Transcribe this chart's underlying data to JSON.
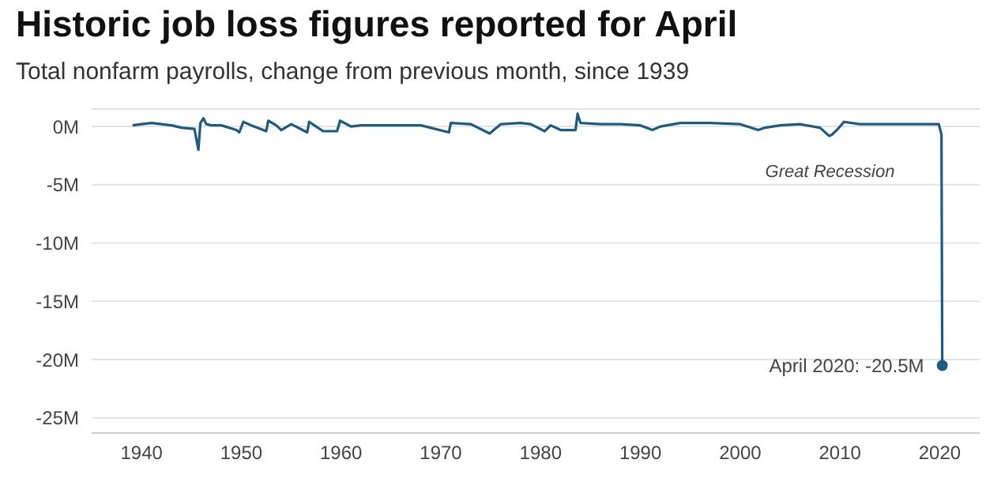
{
  "chart_data": {
    "type": "line",
    "title": "Historic job loss figures reported for April",
    "subtitle": "Total nonfarm payrolls, change from previous month, since 1939",
    "x": [
      1939.1,
      1940,
      1941,
      1942,
      1943,
      1944,
      1945.3,
      1945.7,
      1945.9,
      1946.2,
      1946.5,
      1947,
      1948,
      1949.5,
      1949.8,
      1950.2,
      1951,
      1952.5,
      1952.7,
      1953.5,
      1954,
      1955,
      1956.6,
      1956.8,
      1957.5,
      1958.2,
      1959.6,
      1959.9,
      1961,
      1962,
      1965,
      1968,
      1970.8,
      1971,
      1973,
      1974.9,
      1975.3,
      1976,
      1978,
      1979,
      1980.4,
      1981,
      1982,
      1983.5,
      1983.7,
      1984,
      1986,
      1988,
      1990,
      1991.2,
      1992,
      1994,
      1997,
      2000,
      2001.8,
      2002.5,
      2004,
      2006,
      2008,
      2008.9,
      2009.2,
      2009.8,
      2010.4,
      2012,
      2015,
      2018,
      2019.9,
      2020.17,
      2020.25
    ],
    "series": [
      {
        "color": "#1f5a80",
        "values": [
          0.1,
          0.2,
          0.3,
          0.2,
          0.1,
          -0.1,
          -0.2,
          -2,
          0.3,
          0.7,
          0.2,
          0.1,
          0.1,
          -0.3,
          -0.5,
          0.4,
          0.1,
          -0.4,
          0.5,
          0.1,
          -0.3,
          0.2,
          -0.5,
          0.4,
          0,
          -0.4,
          -0.4,
          0.5,
          0,
          0.1,
          0.1,
          0.1,
          -0.5,
          0.3,
          0.2,
          -0.6,
          -0.3,
          0.2,
          0.3,
          0.2,
          -0.4,
          0.1,
          -0.3,
          -0.3,
          1.1,
          0.3,
          0.2,
          0.2,
          0.1,
          -0.3,
          0,
          0.3,
          0.3,
          0.2,
          -0.3,
          -0.1,
          0.1,
          0.2,
          -0.1,
          -0.8,
          -0.7,
          -0.2,
          0.4,
          0.2,
          0.2,
          0.2,
          0.2,
          -0.7,
          -20.5
        ]
      }
    ],
    "xlim": [
      1935,
      2024
    ],
    "xticks": [
      1940,
      1950,
      1960,
      1970,
      1980,
      1990,
      2000,
      2010,
      2020
    ],
    "ylim": [
      -26.3,
      1.5
    ],
    "yticks": [
      {
        "value": 0,
        "label": "0M"
      },
      {
        "value": -5,
        "label": "-5M"
      },
      {
        "value": -10,
        "label": "-10M"
      },
      {
        "value": -15,
        "label": "-15M"
      },
      {
        "value": -20,
        "label": "-20M"
      },
      {
        "value": -25,
        "label": "-25M"
      }
    ],
    "grid": "y",
    "marker": "none",
    "annotations": [
      {
        "text": "Great Recession",
        "x": 2009,
        "y": -0.8
      },
      {
        "text": "April 2020: -20.5M",
        "x": 2020.25,
        "y": -20.5
      }
    ]
  }
}
